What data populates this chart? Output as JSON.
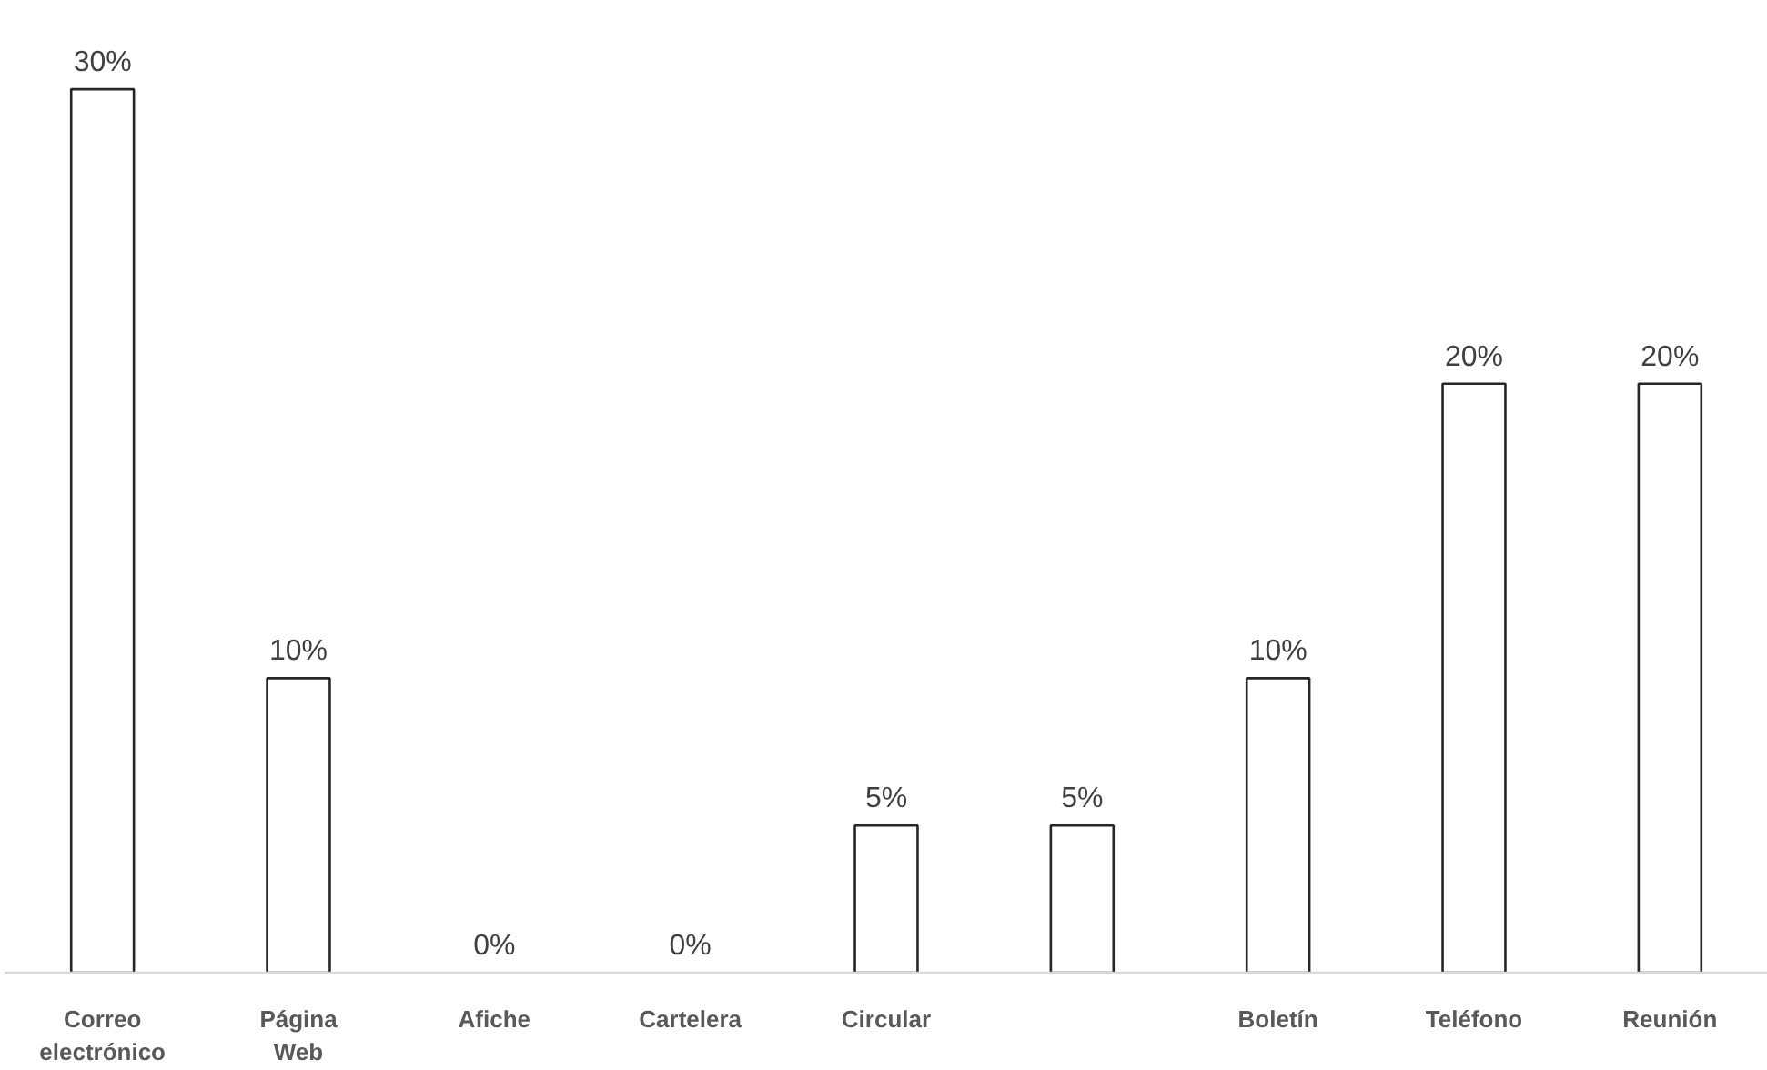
{
  "chart_data": {
    "type": "bar",
    "categories": [
      "Correo\nelectrónico",
      "Página\nWeb",
      "Afiche",
      "Cartelera",
      "Circular",
      null,
      "Boletín",
      "Teléfono",
      "Reunión"
    ],
    "values": [
      30,
      10,
      0,
      0,
      5,
      5,
      10,
      20,
      20
    ],
    "color": "#ffffff",
    "value_labels": [
      "30%",
      "10%",
      "0%",
      "0%",
      "5%",
      "5%",
      "10%",
      "20%",
      "20%"
    ]
  }
}
